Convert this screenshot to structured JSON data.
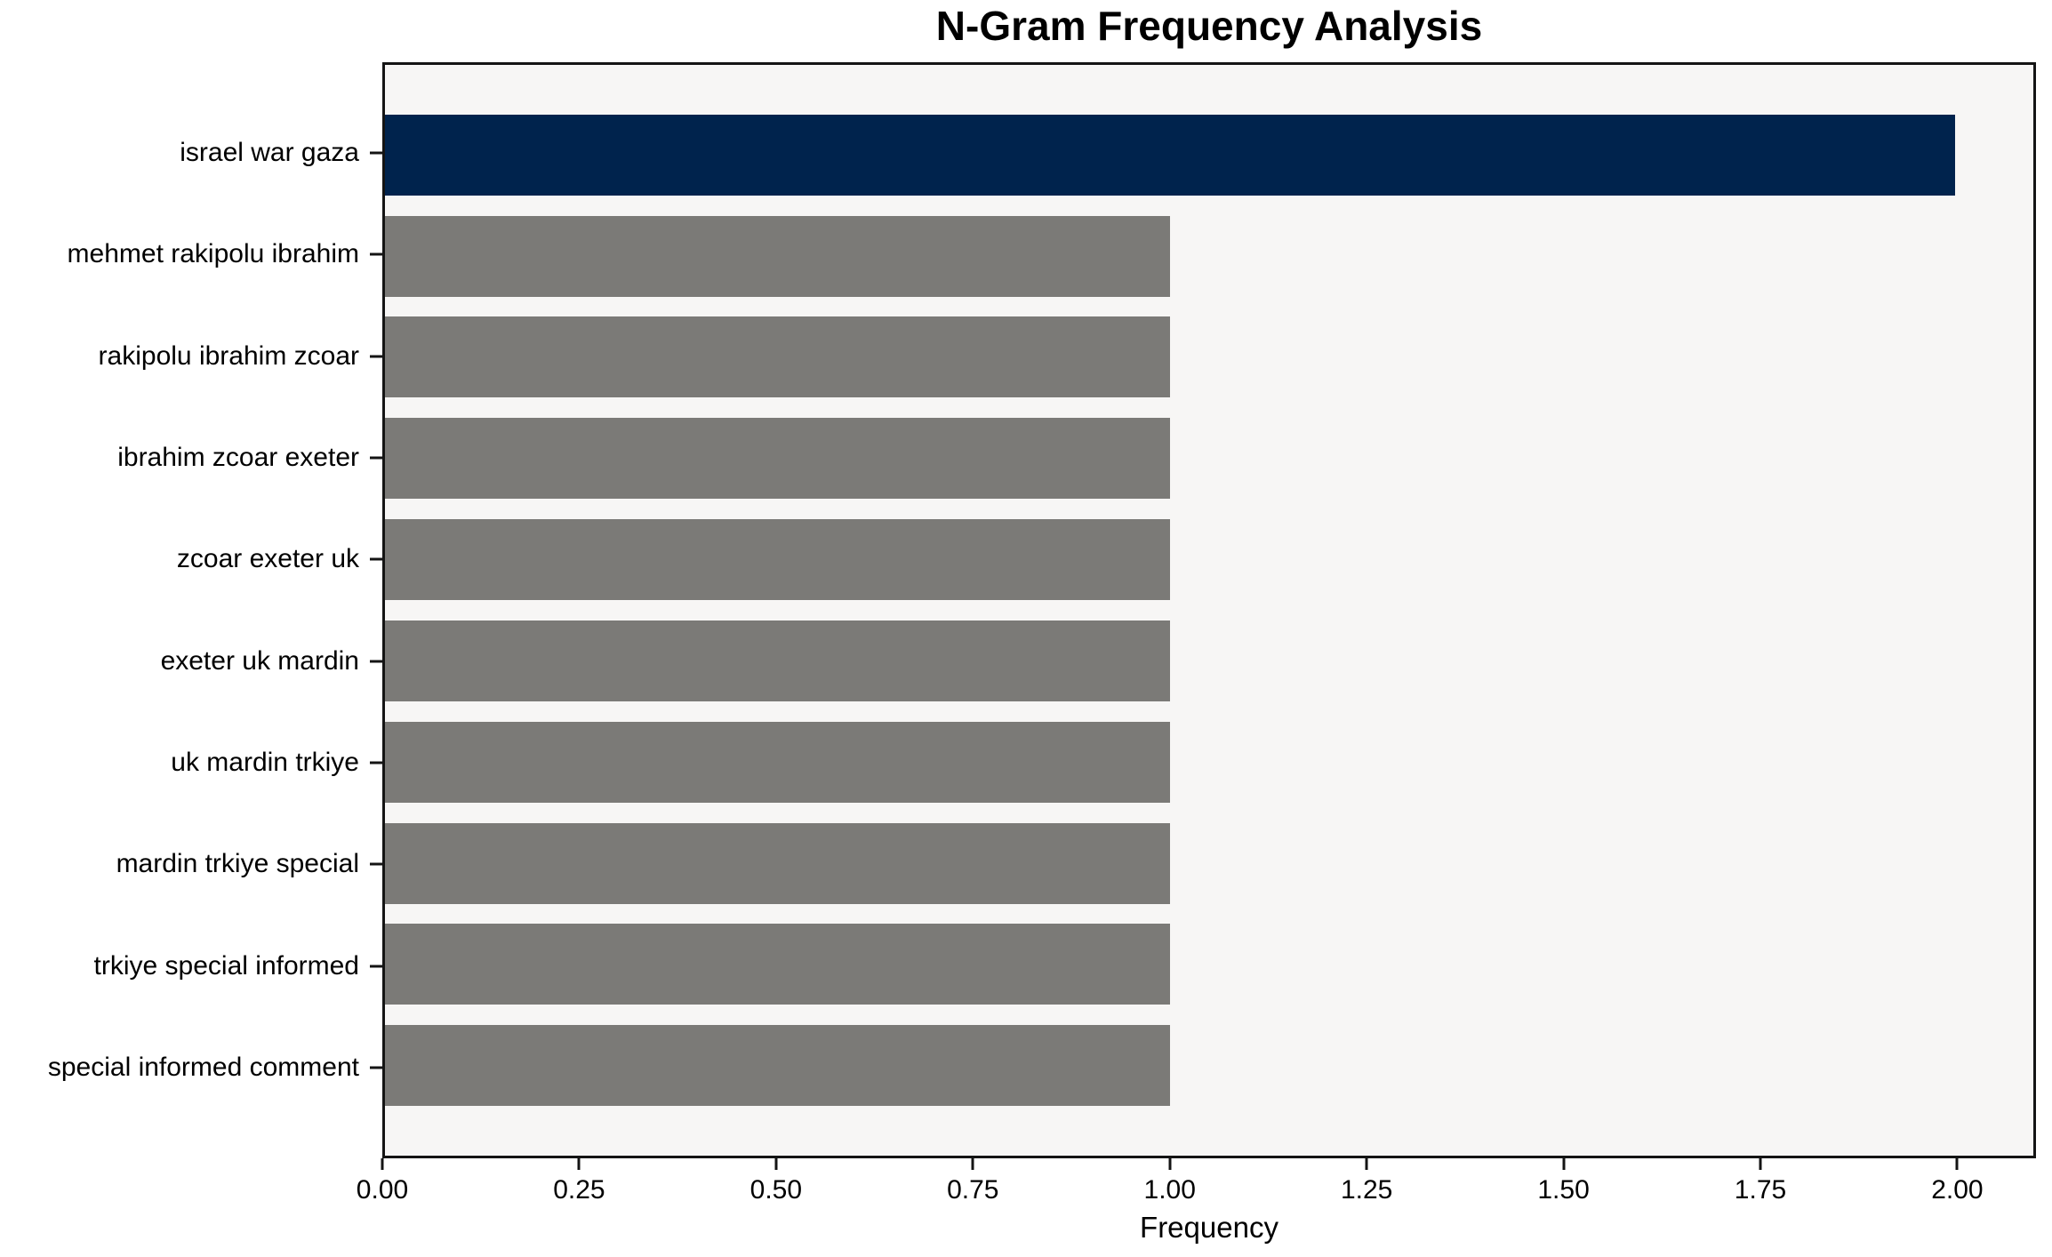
{
  "chart_data": {
    "type": "bar",
    "orientation": "horizontal",
    "title": "N-Gram Frequency Analysis",
    "xlabel": "Frequency",
    "ylabel": "",
    "categories": [
      "israel war gaza",
      "mehmet rakipolu ibrahim",
      "rakipolu ibrahim zcoar",
      "ibrahim zcoar exeter",
      "zcoar exeter uk",
      "exeter uk mardin",
      "uk mardin trkiye",
      "mardin trkiye special",
      "trkiye special informed",
      "special informed comment"
    ],
    "values": [
      2,
      1,
      1,
      1,
      1,
      1,
      1,
      1,
      1,
      1
    ],
    "xlim": [
      0,
      2.1
    ],
    "xticks": [
      {
        "value": 0.0,
        "label": "0.00"
      },
      {
        "value": 0.25,
        "label": "0.25"
      },
      {
        "value": 0.5,
        "label": "0.50"
      },
      {
        "value": 0.75,
        "label": "0.75"
      },
      {
        "value": 1.0,
        "label": "1.00"
      },
      {
        "value": 1.25,
        "label": "1.25"
      },
      {
        "value": 1.5,
        "label": "1.50"
      },
      {
        "value": 1.75,
        "label": "1.75"
      },
      {
        "value": 2.0,
        "label": "2.00"
      }
    ],
    "grid": false,
    "legend": "none",
    "colors": {
      "highlight_bar": "#00234D",
      "default_bar": "#7B7A77",
      "plot_background": "#F7F6F5",
      "figure_background": "#FFFFFF",
      "spine": "#141414",
      "text": "#000000"
    }
  }
}
